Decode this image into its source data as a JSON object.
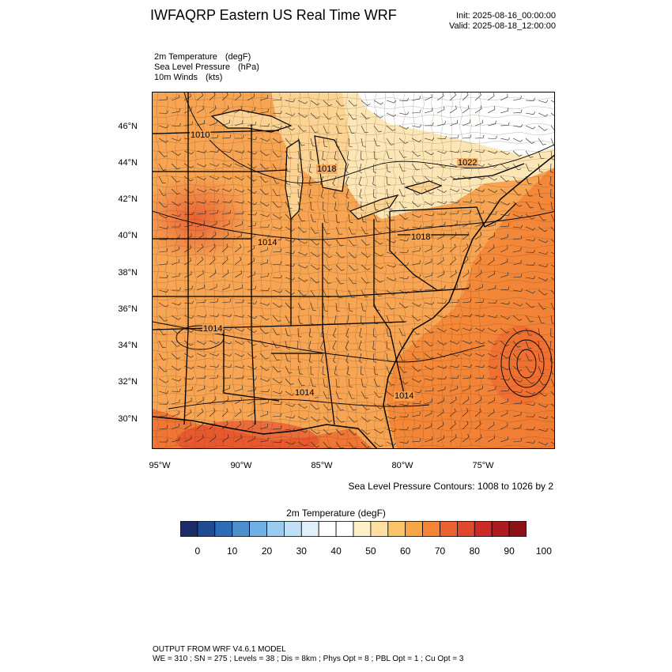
{
  "title": "IWFAQRP Eastern US Real Time WRF",
  "init": "Init: 2025-08-16_00:00:00",
  "valid": "Valid: 2025-08-18_12:00:00",
  "fields": [
    {
      "name": "2m Temperature",
      "unit": "(degF)"
    },
    {
      "name": "Sea Level Pressure",
      "unit": "(hPa)"
    },
    {
      "name": "10m Winds",
      "unit": "(kts)"
    }
  ],
  "lat_labels": [
    "46°N",
    "44°N",
    "42°N",
    "40°N",
    "38°N",
    "36°N",
    "34°N",
    "32°N",
    "30°N"
  ],
  "lon_labels": [
    "95°W",
    "90°W",
    "85°W",
    "80°W",
    "75°W"
  ],
  "contour_note": "Sea Level Pressure Contours: 1008 to 1026 by 2",
  "pressure_labels": [
    "1010",
    "1018",
    "1022",
    "1014",
    "1018",
    "1014",
    "1014",
    "1014"
  ],
  "colorbar": {
    "title": "2m Temperature  (degF)",
    "colors": [
      "#1c2b66",
      "#1f4a94",
      "#2e6cb8",
      "#4a90cf",
      "#6fb1e4",
      "#99ccf0",
      "#bfe0f7",
      "#e0f0fb",
      "#ffffff",
      "#ffffff",
      "#fff0c8",
      "#fde0a0",
      "#fbc36a",
      "#f8a54a",
      "#f48436",
      "#ee6230",
      "#e2462c",
      "#cc2a27",
      "#ae1a22",
      "#8c1219"
    ],
    "ticks": [
      "0",
      "10",
      "20",
      "30",
      "40",
      "50",
      "60",
      "70",
      "80",
      "90",
      "100"
    ]
  },
  "footer": {
    "line1": "OUTPUT FROM WRF V4.6.1 MODEL",
    "line2": "WE = 310 ; SN = 275 ; Levels = 38 ; Dis = 8km ; Phys Opt = 8 ; PBL Opt = 1 ; Cu Opt = 3"
  }
}
